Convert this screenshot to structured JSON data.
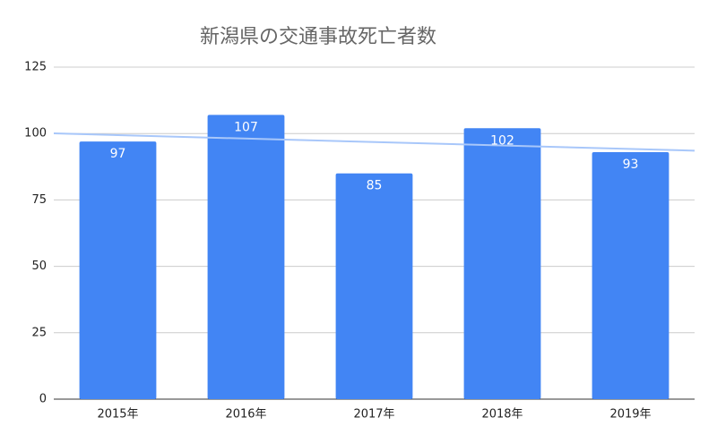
{
  "chart_data": {
    "type": "bar",
    "title": "新潟県の交通事故死亡者数",
    "categories": [
      "2015年",
      "2016年",
      "2017年",
      "2018年",
      "2019年"
    ],
    "values": [
      97,
      107,
      85,
      102,
      93
    ],
    "color": "#4285f4",
    "ylim": [
      0,
      125
    ],
    "yticks": [
      0,
      25,
      50,
      75,
      100,
      125
    ],
    "grid": true,
    "trendline": true,
    "trendline_color": "#a8c7fa",
    "data_labels": true
  }
}
